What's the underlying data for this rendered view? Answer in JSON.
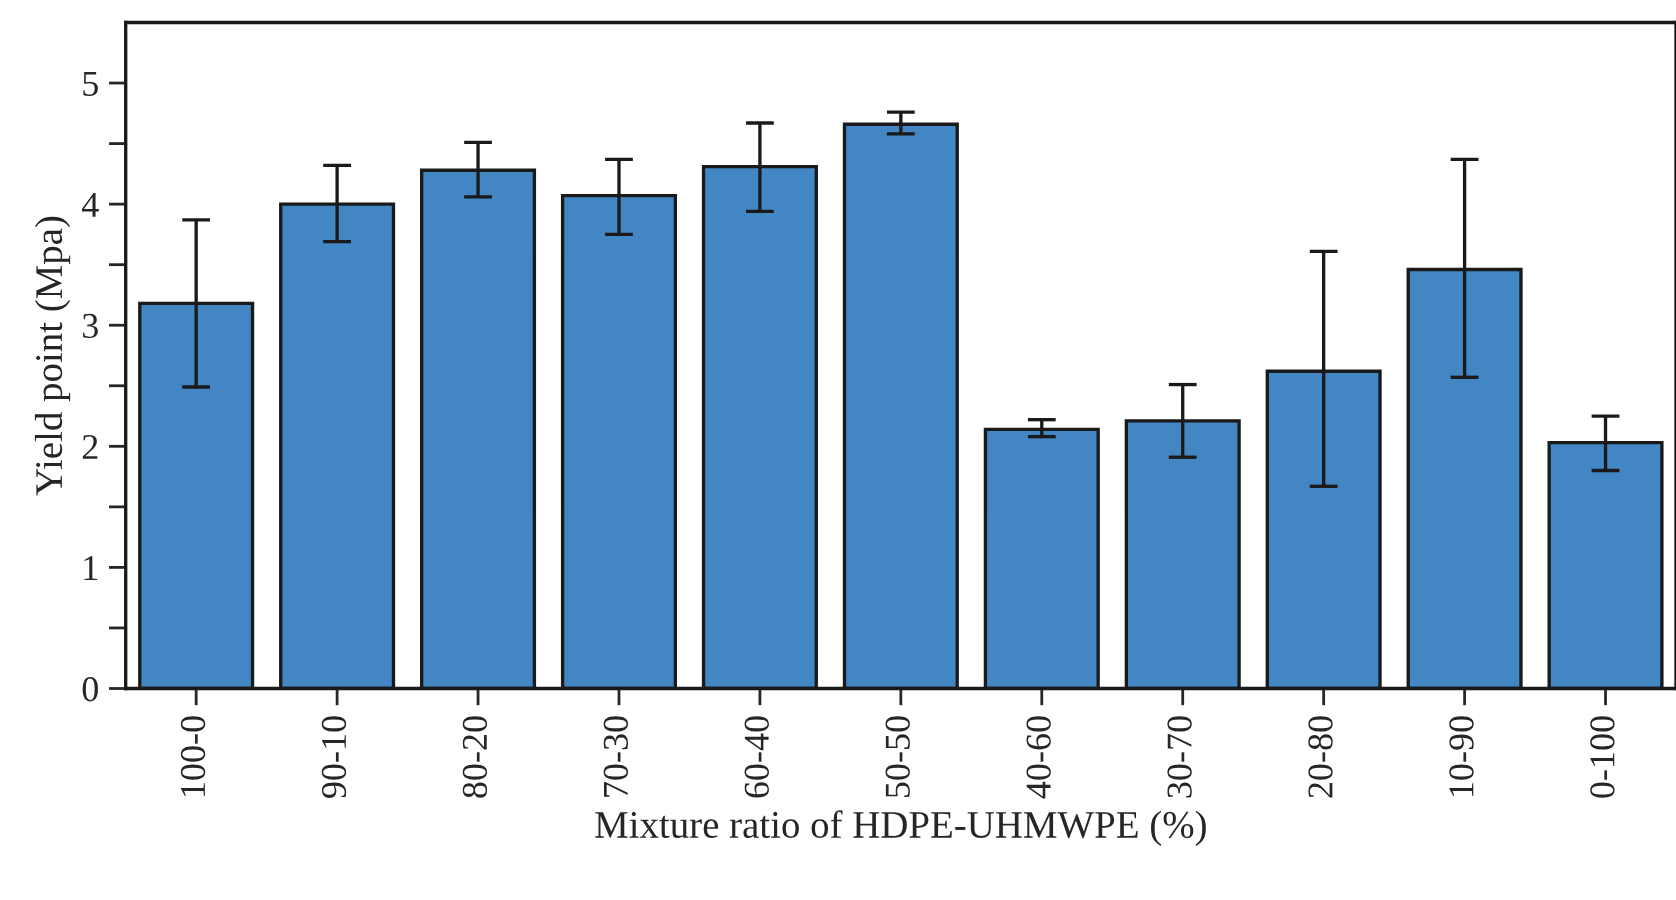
{
  "chart_data": {
    "type": "bar",
    "xlabel": "Mixture ratio of HDPE-UHMWPE (%)",
    "ylabel": "Yield point (Mpa)",
    "categories": [
      "100-0",
      "90-10",
      "80-20",
      "70-30",
      "60-40",
      "50-50",
      "40-60",
      "30-70",
      "20-80",
      "10-90",
      "0-100"
    ],
    "values": [
      3.18,
      4.0,
      4.28,
      4.07,
      4.31,
      4.66,
      2.14,
      2.21,
      2.62,
      3.46,
      2.03
    ],
    "errors": [
      [
        2.49,
        3.87
      ],
      [
        3.69,
        4.32
      ],
      [
        4.06,
        4.51
      ],
      [
        3.75,
        4.37
      ],
      [
        3.94,
        4.67
      ],
      [
        4.58,
        4.76
      ],
      [
        2.08,
        2.22
      ],
      [
        1.91,
        2.51
      ],
      [
        1.67,
        3.61
      ],
      [
        2.57,
        4.37
      ],
      [
        1.8,
        2.25
      ]
    ],
    "color": "#4287c4",
    "ylim": [
      0,
      5.5
    ],
    "yticks": [
      0,
      {
        "value": 0.5,
        "label": null
      },
      1,
      {
        "value": 1.5,
        "label": null
      },
      2,
      {
        "value": 2.5,
        "label": null
      },
      3,
      {
        "value": 3.5,
        "label": null
      },
      4,
      {
        "value": 4.5,
        "label": null
      },
      5
    ],
    "grid": false,
    "legend": false
  }
}
